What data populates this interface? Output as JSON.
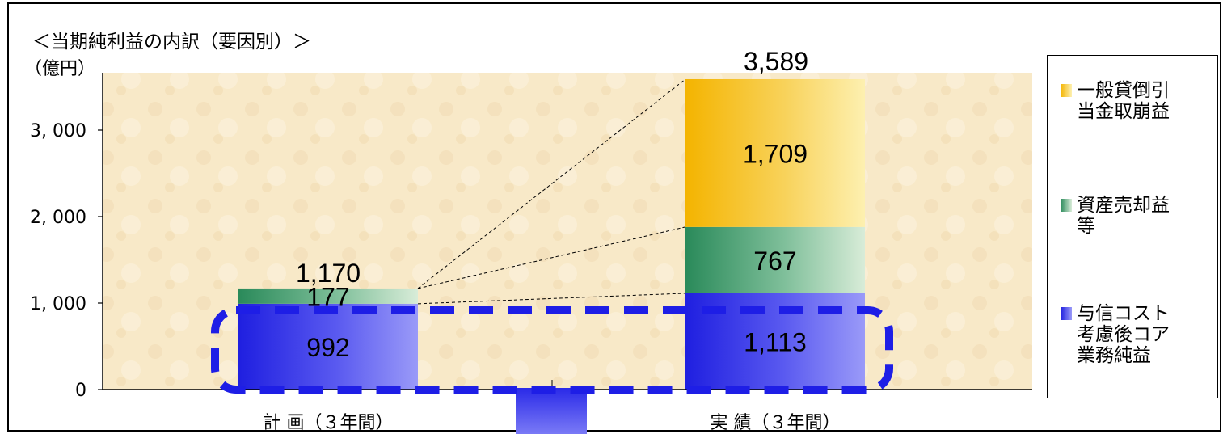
{
  "chart_data": {
    "type": "bar",
    "stacked": true,
    "title": "＜当期純利益の内訳（要因別）＞",
    "ylabel": "（億円）",
    "categories": [
      "計 画（３年間）",
      "実 績（３年間）"
    ],
    "series": [
      {
        "name": "与信コスト考慮後コア業務純益",
        "values": [
          992,
          1113
        ],
        "labels": [
          "992",
          "1,113"
        ],
        "color": "#3a3ae8"
      },
      {
        "name": "資産売却益等",
        "values": [
          177,
          767
        ],
        "labels": [
          "177",
          "767"
        ],
        "color": "#2e8b57"
      },
      {
        "name": "一般貸倒引当金取崩益",
        "values": [
          0,
          1709
        ],
        "labels": [
          "",
          "1,709"
        ],
        "color": "#f5c02a"
      }
    ],
    "totals": [
      "1,170",
      "3,589"
    ],
    "ylim": [
      0,
      3600
    ],
    "yticks": [
      0,
      1000,
      2000,
      3000
    ],
    "ytick_labels": [
      "0",
      "1, 000",
      "2, 000",
      "3, 000"
    ],
    "grid": false,
    "legend_position": "right"
  },
  "legend": [
    {
      "label": "一般貸倒引当金取崩益",
      "lines": [
        "一般貸倒引",
        "当金取崩益"
      ],
      "color": "#f5c02a"
    },
    {
      "label": "資産売却益等",
      "lines": [
        "資産売却益",
        "等"
      ],
      "color": "#2e8b57"
    },
    {
      "label": "与信コスト考慮後コア業務純益",
      "lines": [
        "与信コスト",
        "考慮後コア",
        "業務純益"
      ],
      "color": "#3a3ae8"
    }
  ]
}
